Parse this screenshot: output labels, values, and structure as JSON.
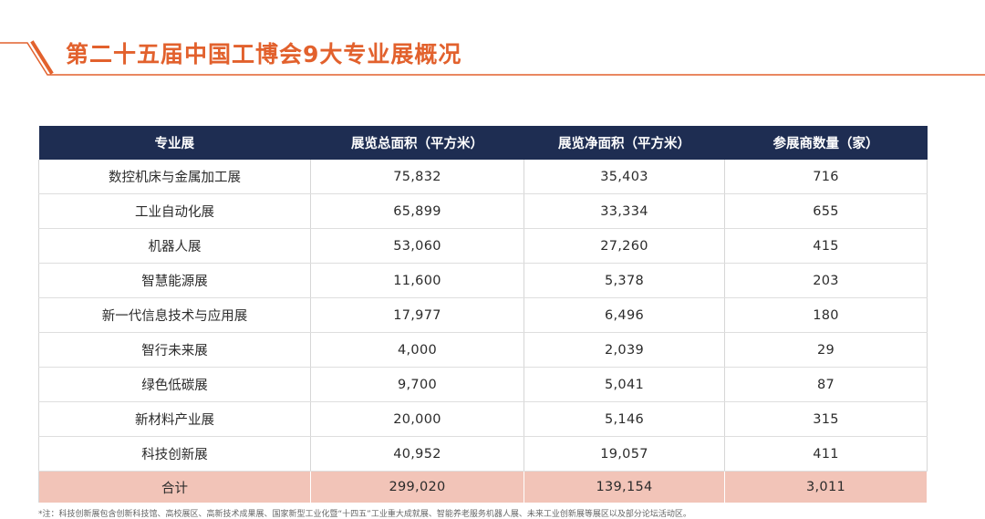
{
  "title": "第二十五届中国工博会9大专业展概况",
  "colors": {
    "accent": "#e2612d",
    "header_bg": "#1e2d52",
    "total_bg": "#f2c4b8"
  },
  "table": {
    "headers": [
      "专业展",
      "展览总面积（平方米）",
      "展览净面积（平方米）",
      "参展商数量（家）"
    ],
    "rows": [
      [
        "数控机床与金属加工展",
        "75,832",
        "35,403",
        "716"
      ],
      [
        "工业自动化展",
        "65,899",
        "33,334",
        "655"
      ],
      [
        "机器人展",
        "53,060",
        "27,260",
        "415"
      ],
      [
        "智慧能源展",
        "11,600",
        "5,378",
        "203"
      ],
      [
        "新一代信息技术与应用展",
        "17,977",
        "6,496",
        "180"
      ],
      [
        "智行未来展",
        "4,000",
        "2,039",
        "29"
      ],
      [
        "绿色低碳展",
        "9,700",
        "5,041",
        "87"
      ],
      [
        "新材料产业展",
        "20,000",
        "5,146",
        "315"
      ],
      [
        "科技创新展",
        "40,952",
        "19,057",
        "411"
      ]
    ],
    "total": [
      "合计",
      "299,020",
      "139,154",
      "3,011"
    ]
  },
  "footnote": "*注：科技创新展包含创新科技馆、高校展区、高新技术成果展、国家新型工业化暨“十四五”工业重大成就展、智能养老服务机器人展、未来工业创新展等展区以及部分论坛活动区。"
}
